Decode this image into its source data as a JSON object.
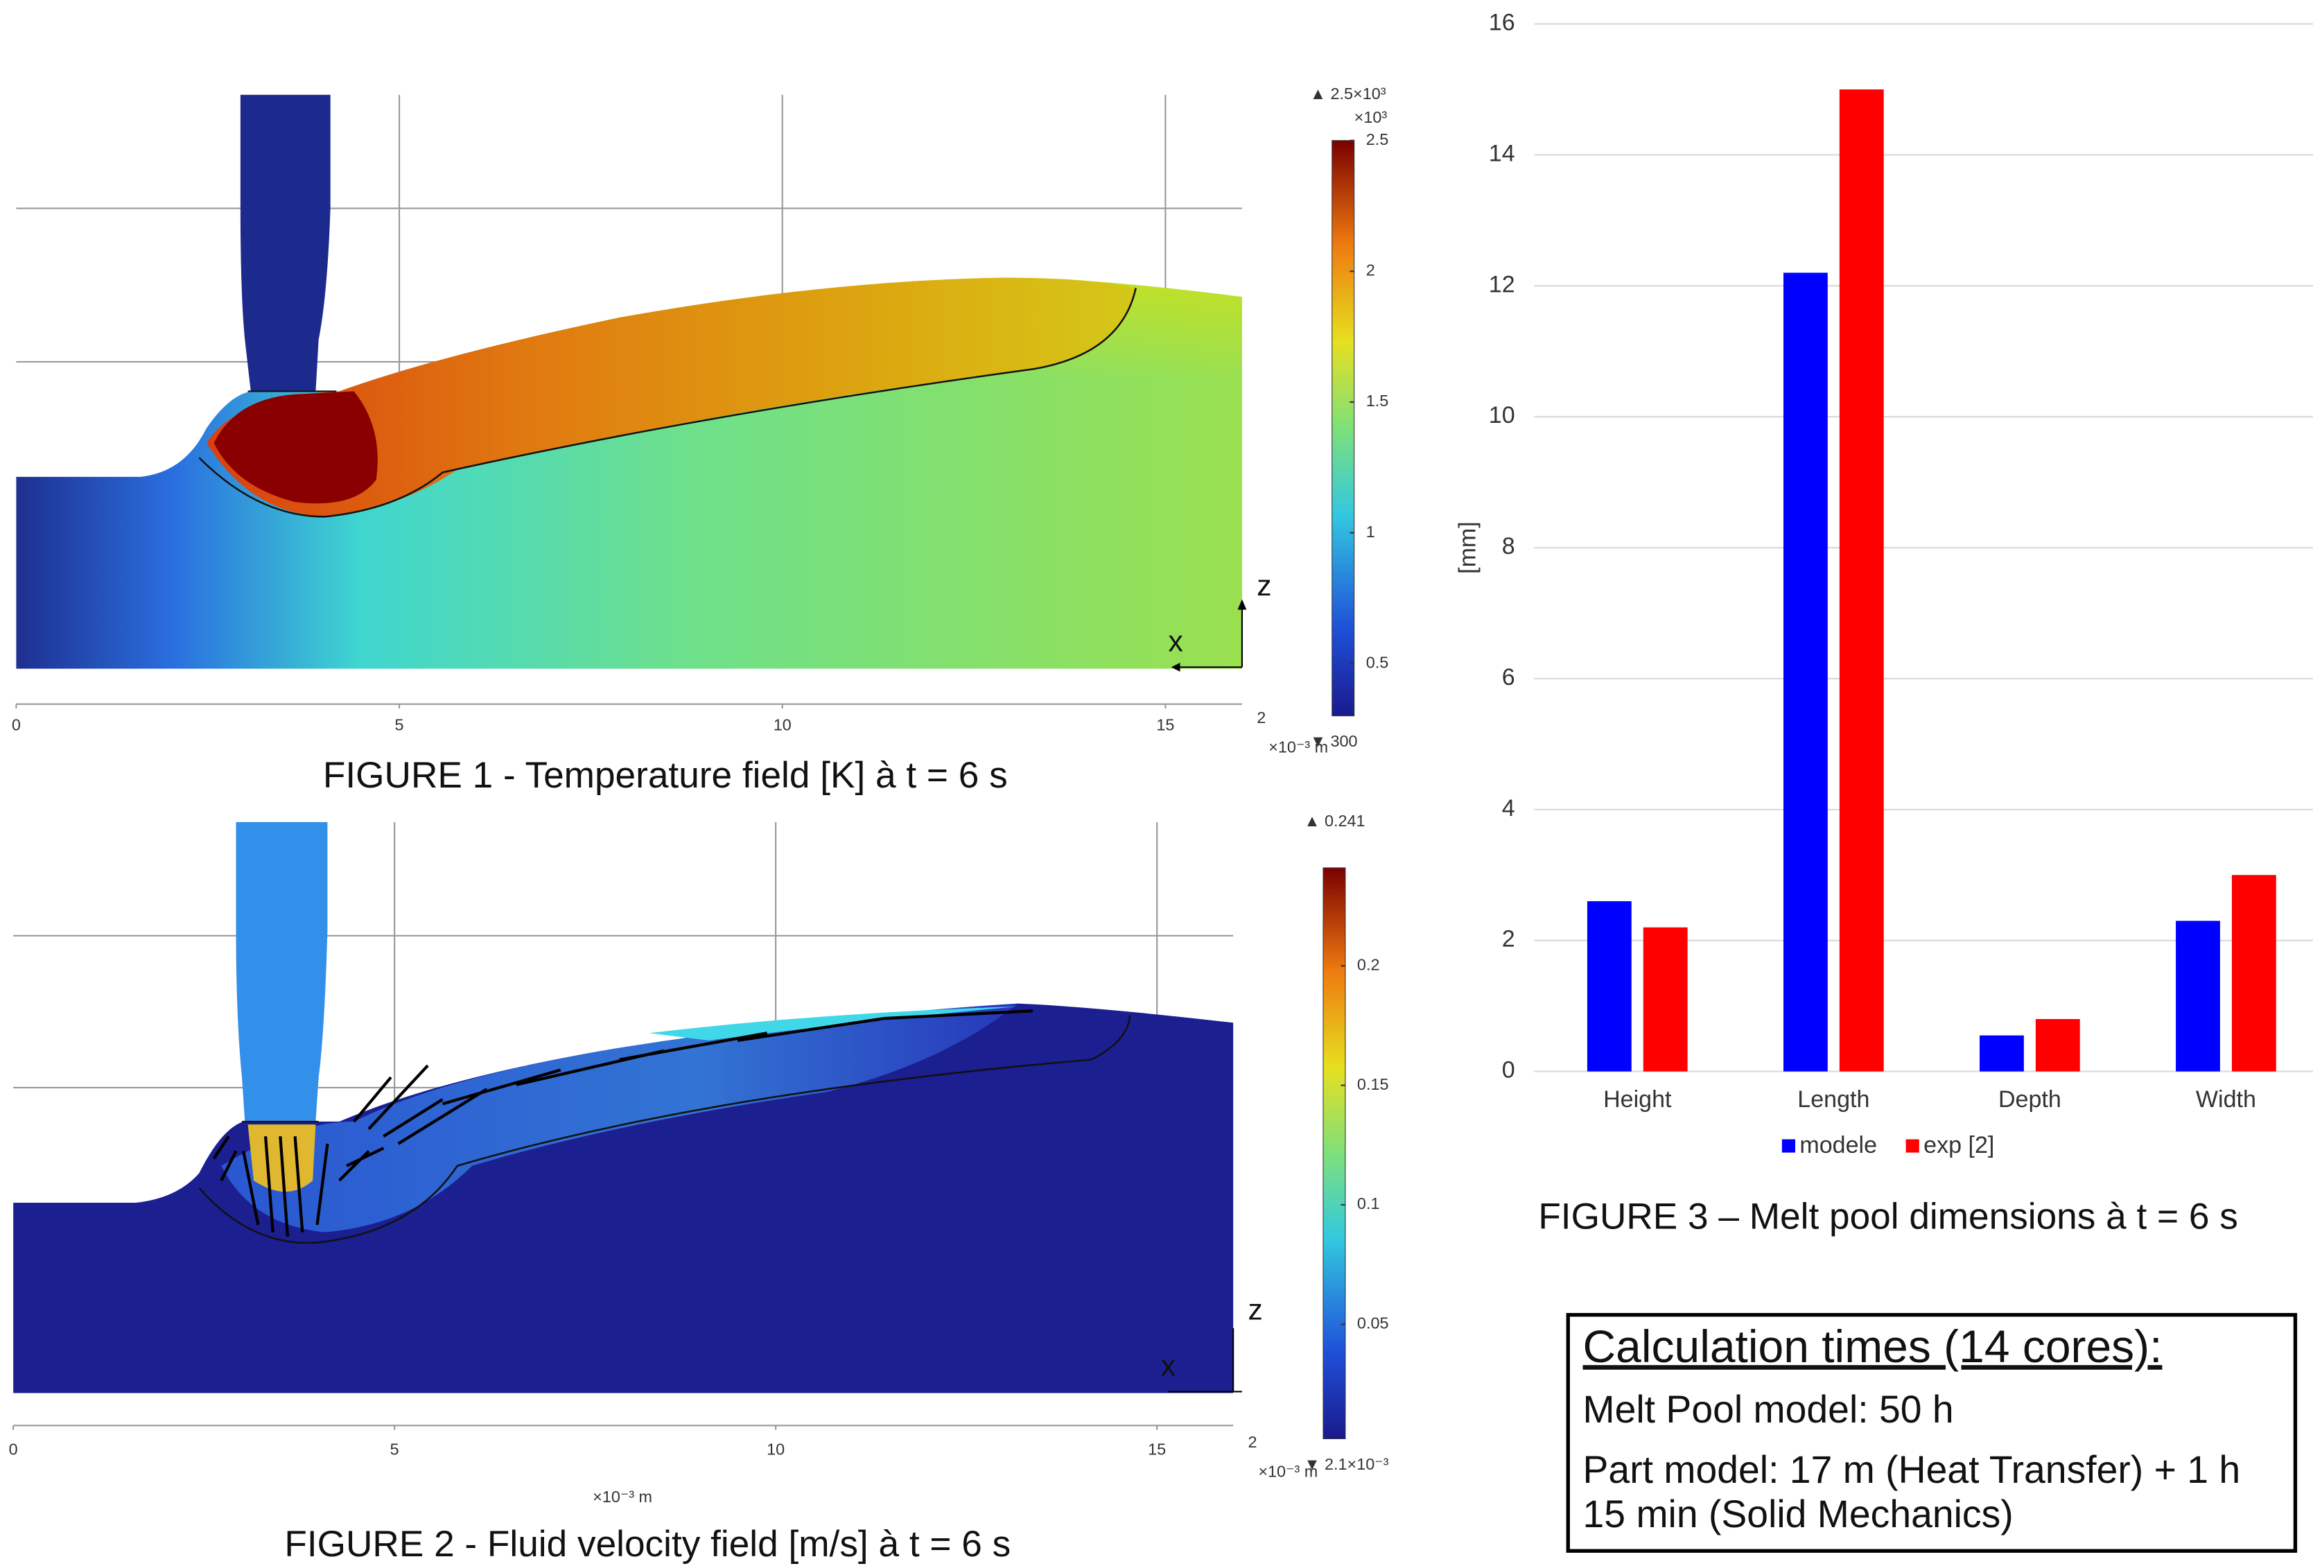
{
  "figures": [
    {
      "caption": "FIGURE 1 - Temperature field [K] à t = 6 s",
      "xlim": [
        0,
        16
      ],
      "xticks": [
        0,
        5,
        10,
        15
      ],
      "x_edge_label": "2",
      "x_unit": "×10⁻³ m",
      "axis_labels": {
        "z": "z",
        "x": "x"
      },
      "colorbar": {
        "max_label": "▲ 2.5×10³",
        "scale_label": "×10³",
        "min_label": "▼ 300",
        "clim": [
          0.3,
          2.5
        ],
        "ticks": [
          0.5,
          1,
          1.5,
          2,
          2.5
        ]
      }
    },
    {
      "caption": "FIGURE 2 - Fluid velocity field [m/s] à t = 6 s",
      "xlim": [
        0,
        16
      ],
      "xticks": [
        0,
        5,
        10,
        15
      ],
      "x_edge_label": "2",
      "x_unit": "×10⁻³ m",
      "axis_labels": {
        "z": "z",
        "x": "x"
      },
      "colorbar": {
        "max_label": "▲ 0.241",
        "min_label": "▼ 2.1×10⁻³",
        "clim": [
          0.0021,
          0.241
        ],
        "ticks": [
          0.05,
          0.1,
          0.15,
          0.2
        ]
      }
    }
  ],
  "chart_data": {
    "type": "bar",
    "caption": "FIGURE 3 – Melt pool dimensions à t = 6 s",
    "ylabel": "[mm]",
    "categories": [
      "Height",
      "Length",
      "Depth",
      "Width"
    ],
    "series": [
      {
        "name": "modele",
        "color": "#0000ff",
        "values": [
          2.6,
          12.2,
          0.55,
          2.3
        ]
      },
      {
        "name": "exp [2]",
        "color": "#ff0000",
        "values": [
          2.2,
          15,
          0.8,
          3
        ]
      }
    ],
    "ylim": [
      0,
      16
    ],
    "yticks": [
      0,
      2,
      4,
      6,
      8,
      10,
      12,
      14,
      16
    ],
    "grid": true,
    "legend": "bottom"
  },
  "calc_box": {
    "title": "Calculation times (14 cores):",
    "melt_pool": "Melt Pool model: 50 h",
    "part_model": [
      "Part model: 17 m (Heat Transfer) + 1 h",
      "15 min (Solid Mechanics)"
    ]
  }
}
